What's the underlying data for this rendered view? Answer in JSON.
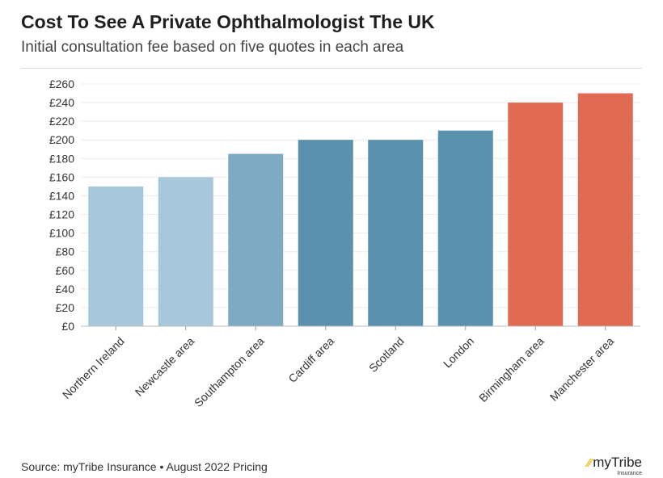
{
  "chart_data": {
    "type": "bar",
    "title": "Cost To See A Private Ophthalmologist The UK",
    "subtitle": "Initial consultation fee based on five quotes in each area",
    "categories": [
      "Northern Ireland",
      "Newcastle area",
      "Southampton area",
      "Cardiff area",
      "Scotland",
      "London",
      "Birmingham area",
      "Manchester area"
    ],
    "values": [
      150,
      160,
      185,
      200,
      200,
      210,
      240,
      250
    ],
    "bar_colors": [
      "#a9c7da",
      "#a9c7da",
      "#7eaac4",
      "#5a91ad",
      "#5a91ad",
      "#5a91ad",
      "#e06a52",
      "#e06a52"
    ],
    "ylim": [
      0,
      260
    ],
    "ytick_values": [
      0,
      20,
      40,
      60,
      80,
      100,
      120,
      140,
      160,
      180,
      200,
      220,
      240,
      260
    ],
    "ytick_labels": [
      "£0",
      "£20",
      "£40",
      "£60",
      "£80",
      "£100",
      "£120",
      "£140",
      "£160",
      "£180",
      "£200",
      "£220",
      "£240",
      "£260"
    ],
    "xlabel": "",
    "ylabel": "",
    "grid": true
  },
  "footer": {
    "source": "Source: myTribe Insurance • August 2022 Pricing",
    "brand_name": "myTribe",
    "brand_sub": "Insurance"
  }
}
